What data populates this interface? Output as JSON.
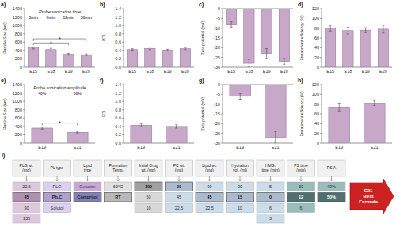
{
  "chart_data": [
    {
      "type": "bar",
      "title": "Probe sonication time",
      "ylabel": "Particle Size (nm)",
      "categories": [
        "E15",
        "E18",
        "E19",
        "E20"
      ],
      "values": [
        460,
        420,
        310,
        300
      ],
      "errors": [
        25,
        30,
        20,
        18
      ],
      "color": "#c8a8c8",
      "ylim": [
        0,
        1400
      ],
      "yticks": [
        0,
        200,
        400,
        600,
        800,
        1000,
        1200,
        1400
      ],
      "annotations": [
        {
          "text": "a)"
        },
        {
          "text": "3min",
          "at": "E15"
        },
        {
          "text": "6min",
          "at": "E18"
        },
        {
          "text": "12min",
          "at": "E19"
        },
        {
          "text": "30min",
          "at": "E20"
        },
        {
          "text": "*",
          "from": "E15",
          "to": "E19",
          "y": 580
        },
        {
          "text": "*",
          "from": "E15",
          "to": "E20",
          "y": 680
        }
      ]
    },
    {
      "type": "bar",
      "ylabel": "PDI",
      "categories": [
        "E15",
        "E18",
        "E19",
        "E20"
      ],
      "values": [
        0.42,
        0.45,
        0.41,
        0.44
      ],
      "errors": [
        0.02,
        0.03,
        0.02,
        0.02
      ],
      "color": "#c8a8c8",
      "ylim": [
        0,
        1.4
      ],
      "yticks": [
        {
          "value": 0,
          "label": "0.0"
        },
        0.2,
        0.4,
        0.6,
        0.8,
        {
          "value": 1,
          "label": "1.0"
        },
        1.2,
        1.4
      ],
      "annotations": [
        {
          "text": "b)"
        }
      ]
    },
    {
      "type": "bar",
      "ylabel": "Zeta potential (mV)",
      "categories": [
        "E15",
        "E18",
        "E19",
        "E20"
      ],
      "values": [
        -8,
        -28,
        -23,
        -27
      ],
      "errors": [
        1.5,
        2.0,
        2.5,
        1.5
      ],
      "color": "#c8a8c8",
      "ylim": [
        -30,
        0
      ],
      "yticks": [
        -30,
        -25,
        -20,
        -15,
        -10,
        -5,
        0
      ],
      "annotations": [
        {
          "text": "c)"
        }
      ]
    },
    {
      "type": "bar",
      "ylabel": "Entrapment efficiency (%)",
      "categories": [
        "E15",
        "E18",
        "E19",
        "E20"
      ],
      "values": [
        80,
        75,
        76,
        78
      ],
      "errors": [
        6,
        7,
        5,
        8
      ],
      "color": "#c8a8c8",
      "ylim": [
        0,
        120
      ],
      "yticks": [
        0,
        20,
        40,
        60,
        80,
        100,
        120
      ],
      "annotations": [
        {
          "text": "d)"
        }
      ]
    },
    {
      "type": "bar",
      "title": "Probe sonication amplitude",
      "ylabel": "Particle Size (nm)",
      "categories": [
        "E19",
        "E21"
      ],
      "values": [
        360,
        260
      ],
      "errors": [
        25,
        20
      ],
      "color": "#c8a8c8",
      "ylim": [
        0,
        1400
      ],
      "yticks": [
        0,
        200,
        400,
        600,
        800,
        1000,
        1200,
        1400
      ],
      "annotations": [
        {
          "text": "e)"
        },
        {
          "text": "40%",
          "at": "E19"
        },
        {
          "text": "50%",
          "at": "E21"
        },
        {
          "text": "*",
          "from": "E19",
          "to": "E21",
          "y": 480
        }
      ]
    },
    {
      "type": "bar",
      "ylabel": "PDI",
      "categories": [
        "E19",
        "E21"
      ],
      "values": [
        0.43,
        0.4
      ],
      "errors": [
        0.04,
        0.04
      ],
      "color": "#c8a8c8",
      "ylim": [
        0,
        1.4
      ],
      "yticks": [
        {
          "value": 0,
          "label": "0.0"
        },
        0.2,
        0.4,
        0.6,
        0.8,
        {
          "value": 1,
          "label": "1.0"
        },
        1.2,
        1.4
      ],
      "annotations": [
        {
          "text": "f)"
        }
      ]
    },
    {
      "type": "bar",
      "ylabel": "Zeta potential (mV)",
      "categories": [
        "E19",
        "E21"
      ],
      "values": [
        -6,
        -27
      ],
      "errors": [
        1.5,
        3.0
      ],
      "color": "#c8a8c8",
      "ylim": [
        -30,
        0
      ],
      "yticks": [
        -30,
        -25,
        -20,
        -15,
        -10,
        -5,
        0
      ],
      "annotations": [
        {
          "text": "g)"
        }
      ]
    },
    {
      "type": "bar",
      "ylabel": "Entrapment efficiency (%)",
      "categories": [
        "E19",
        "E21"
      ],
      "values": [
        74,
        82
      ],
      "errors": [
        8,
        5
      ],
      "color": "#c8a8c8",
      "ylim": [
        0,
        120
      ],
      "yticks": [
        0,
        20,
        40,
        60,
        80,
        100,
        120
      ],
      "annotations": [
        {
          "text": "h)"
        }
      ]
    },
    {
      "type": "diagram",
      "annotations": [
        {
          "text": "i)"
        }
      ],
      "factors": [
        {
          "name": "PLG wt.\n(mg)",
          "values": [
            "22.5",
            "45",
            "90",
            "135"
          ],
          "selected": 1,
          "color": "#ddc8dd",
          "selected_color": "#b090b0"
        },
        {
          "name": "PL type",
          "values": [
            "PLG",
            "Ph.C",
            "Solutol"
          ],
          "selected": 1,
          "color": "#ddd0ee",
          "selected_color": "#b0a0d0"
        },
        {
          "name": "Lipid\ntype",
          "values": [
            "Gelucire",
            "Compritol"
          ],
          "selected": 1,
          "color": "#c8a8d8",
          "selected_color": "#8080b8"
        },
        {
          "name": "Formation\nTemp.",
          "values": [
            "60°C",
            "RT"
          ],
          "selected": 1,
          "color": "#e0e0e0",
          "selected_color": "#b8b8b8"
        },
        {
          "name": "Initial Drug\nwt. (mg)",
          "values": [
            "100",
            "50",
            "10"
          ],
          "selected": 0,
          "color": "#d8d8d8",
          "selected_color": "#a0a0a0"
        },
        {
          "name": "PC wt.\n(mg)",
          "values": [
            "90",
            "45",
            "22.5"
          ],
          "selected": 0,
          "color": "#ccdce8",
          "selected_color": "#aabbd0"
        },
        {
          "name": "Lipid wt.\n(mg)",
          "values": [
            "90",
            "45",
            "22.5"
          ],
          "selected": 1,
          "color": "#ccdce8",
          "selected_color": "#aabbd0"
        },
        {
          "name": "Hydration\nvol. (ml)",
          "values": [
            "20",
            "15",
            "10"
          ],
          "selected": 1,
          "color": "#ccdce8",
          "selected_color": "#aabbd0"
        },
        {
          "name": "HMG.\ntime (min)",
          "values": [
            "5",
            "0",
            "6",
            "3"
          ],
          "selected": 1,
          "color": "#ccdce8",
          "selected_color": "#aabbd0"
        },
        {
          "name": "PS time\n(min)",
          "values": [
            "30",
            "12",
            "6"
          ],
          "selected": 1,
          "color": "#9abcbc",
          "selected_color": "#507070"
        },
        {
          "name": "PS.A",
          "values": [
            "40%",
            "50%"
          ],
          "selected": 1,
          "color": "#9abcbc",
          "selected_color": "#507070"
        }
      ],
      "result": {
        "text": "E21\nBest\nFormula",
        "color": "#cc2222"
      }
    }
  ]
}
